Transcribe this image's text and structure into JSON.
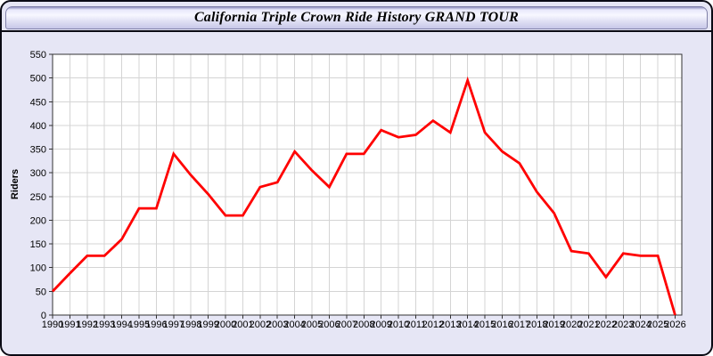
{
  "window": {
    "title": "California Triple Crown Ride History GRAND TOUR"
  },
  "colors": {
    "line": "#ff0000",
    "plot_background": "#ffffff",
    "page_background": "#e6e6f5",
    "gridline": "#d4d4d4",
    "axis": "#333333"
  },
  "chart_data": {
    "type": "line",
    "title": "California Triple Crown Ride History GRAND TOUR",
    "xlabel": "",
    "ylabel": "Riders",
    "grid": true,
    "legend_position": "none",
    "ylim": [
      0,
      550
    ],
    "y_ticks": [
      0,
      50,
      100,
      150,
      200,
      250,
      300,
      350,
      400,
      450,
      500,
      550
    ],
    "x_labels": [
      "1990",
      "1991",
      "1992",
      "1993",
      "1994",
      "1995",
      "1996",
      "1997",
      "1998",
      "1999",
      "2000",
      "2001",
      "2002",
      "2003",
      "2004",
      "2005",
      "2006",
      "2007",
      "2008",
      "2009",
      "2010",
      "2011",
      "2012",
      "2013",
      "2014",
      "2015",
      "2016",
      "2017",
      "2018",
      "2019",
      "2020",
      "2021",
      "2022",
      "2023",
      "2024",
      "2025",
      "2026"
    ],
    "series": [
      {
        "name": "Riders",
        "values": [
          50,
          88,
          125,
          125,
          160,
          225,
          225,
          340,
          295,
          255,
          210,
          210,
          270,
          280,
          345,
          305,
          270,
          340,
          340,
          390,
          375,
          380,
          410,
          385,
          495,
          385,
          345,
          320,
          260,
          215,
          135,
          130,
          80,
          130,
          125,
          125,
          0
        ]
      }
    ]
  }
}
